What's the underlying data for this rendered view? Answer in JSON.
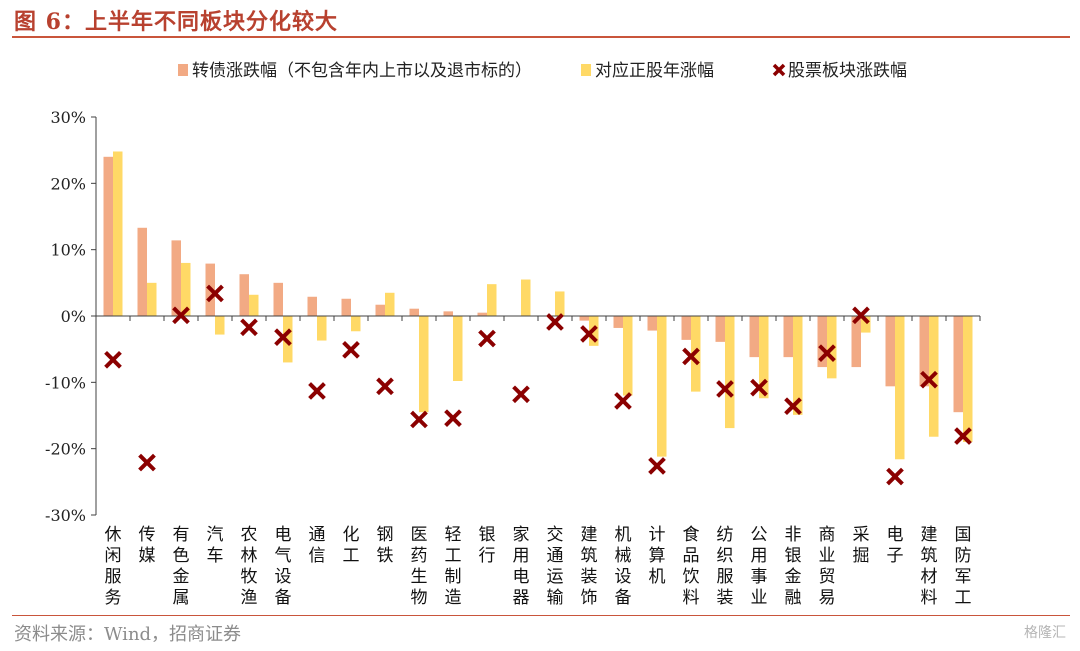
{
  "figure": {
    "title": "图 6：上半年不同板块分化较大",
    "source": "资料来源：Wind，招商证券",
    "watermark": "格隆汇"
  },
  "colors": {
    "series1": "#f2aa84",
    "series2": "#ffd966",
    "series3": "#8b0000",
    "accent": "#c9553b",
    "axis": "#404040"
  },
  "chart_data": {
    "type": "bar",
    "title": "",
    "xlabel": "",
    "ylabel": "",
    "ylim": [
      -30,
      30
    ],
    "yticks": [
      30,
      20,
      10,
      0,
      -10,
      -20,
      -30
    ],
    "ytick_labels": [
      "30%",
      "20%",
      "10%",
      "0%",
      "-10%",
      "-20%",
      "-30%"
    ],
    "grid": false,
    "legend_position": "top",
    "categories": [
      "休闲服务",
      "传媒",
      "有色金属",
      "汽车",
      "农林牧渔",
      "电气设备",
      "通信",
      "化工",
      "钢铁",
      "医药生物",
      "轻工制造",
      "银行",
      "家用电器",
      "交通运输",
      "建筑装饰",
      "机械设备",
      "计算机",
      "食品饮料",
      "纺织服装",
      "公用事业",
      "非银金融",
      "商业贸易",
      "采掘",
      "电子",
      "建筑材料",
      "国防军工"
    ],
    "series": [
      {
        "name": "转债涨跌幅（不包含年内上市以及退市标的）",
        "kind": "bar",
        "values": [
          24,
          13.3,
          11.4,
          7.9,
          6.3,
          5,
          2.9,
          2.6,
          1.7,
          1.1,
          0.7,
          0.5,
          0,
          0,
          -0.7,
          -1.8,
          -2.2,
          -3.6,
          -3.9,
          -6.2,
          -6.2,
          -7.7,
          -7.7,
          -10.6,
          -10.6,
          -14.5
        ]
      },
      {
        "name": "对应正股年涨幅",
        "kind": "bar",
        "values": [
          24.8,
          5,
          8,
          -2.8,
          3.2,
          -7,
          -3.7,
          -2.3,
          3.5,
          -14.5,
          -9.8,
          4.8,
          5.5,
          3.7,
          -4.5,
          -12,
          -21.2,
          -11.4,
          -16.9,
          -12.4,
          -14.9,
          -9.4,
          -2.5,
          -21.6,
          -18.2,
          -19
        ]
      },
      {
        "name": "股票板块涨跌幅",
        "kind": "marker",
        "values": [
          -6.6,
          -22.1,
          0.1,
          3.4,
          -1.7,
          -3.2,
          -11.3,
          -5.1,
          -10.6,
          -15.6,
          -15.4,
          -3.4,
          -11.8,
          -0.9,
          -2.7,
          -12.8,
          -22.6,
          -6.1,
          -11,
          -10.8,
          -13.6,
          -5.6,
          0.1,
          -24.2,
          -9.6,
          -18.1
        ]
      }
    ]
  }
}
